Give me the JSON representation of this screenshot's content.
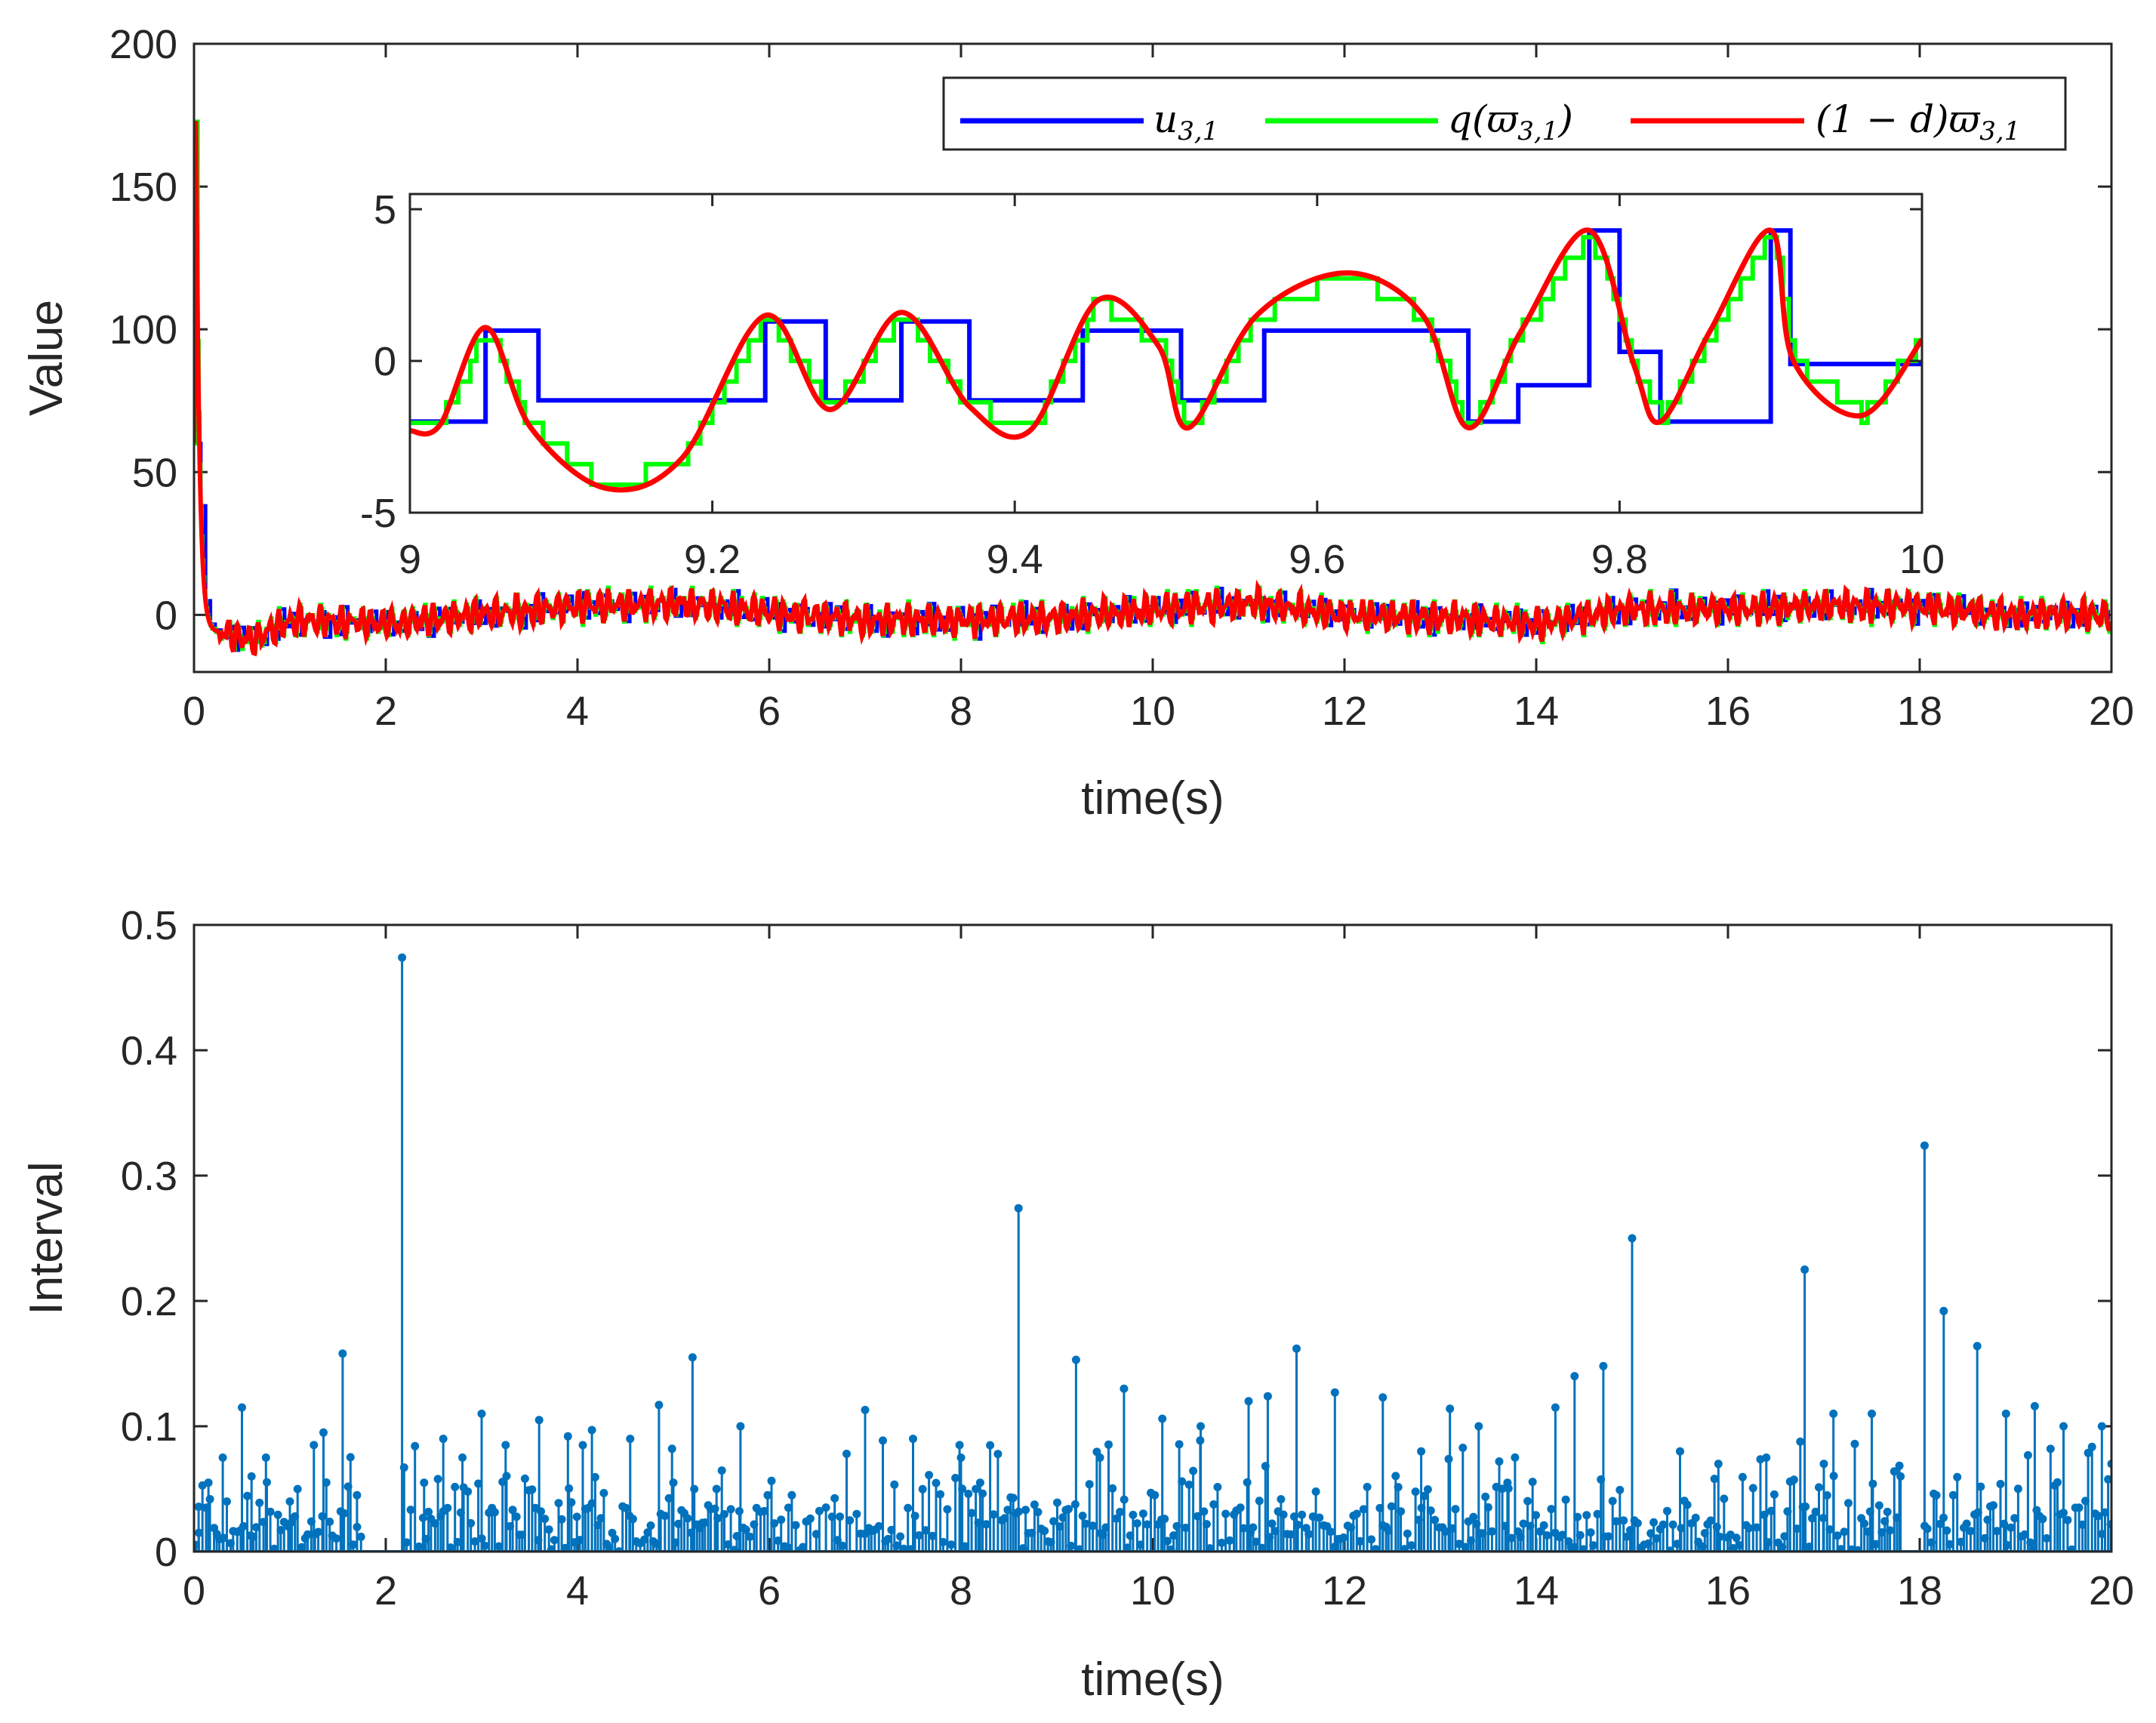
{
  "chart_data": [
    {
      "id": "top",
      "type": "line",
      "xlabel": "time(s)",
      "ylabel": "Value",
      "xlim": [
        0,
        20
      ],
      "ylim": [
        -20,
        200
      ],
      "xticks": [
        "0",
        "2",
        "4",
        "6",
        "8",
        "10",
        "12",
        "14",
        "16",
        "18",
        "20"
      ],
      "yticks": [
        "0",
        "50",
        "100",
        "150",
        "200"
      ],
      "xtick_values": [
        0,
        2,
        4,
        6,
        8,
        10,
        12,
        14,
        16,
        18,
        20
      ],
      "ytick_values": [
        0,
        50,
        100,
        150,
        200
      ],
      "legend": {
        "location": "top-right",
        "entries": [
          {
            "label": "u",
            "sub": "3,1",
            "color": "#0000ff"
          },
          {
            "label": "q(ϖ",
            "sub": "3,1",
            "suffix": ")",
            "color": "#00ff00"
          },
          {
            "label": "(1 − d)ϖ",
            "sub": "3,1",
            "color": "#ff0000"
          }
        ]
      },
      "series": [
        {
          "name": "u_{3,1}",
          "color": "#0000ff",
          "description": "event-triggered held control signal, oscillates around 0 after a spike near t=0"
        },
        {
          "name": "q(varpi_{3,1})",
          "color": "#00ff00",
          "description": "quantized signal tracking red curve"
        },
        {
          "name": "(1-d)varpi_{3,1}",
          "color": "#ff0000",
          "description": "continuous signal: spike to ~173 at t≈0.02, fast decay to 0, then oscillation within about ±8"
        }
      ],
      "initial_peak": {
        "x": 0.02,
        "y": 173
      },
      "main_envelope": [
        [
          0.25,
          -6
        ],
        [
          0.6,
          -9
        ],
        [
          1.0,
          -2
        ],
        [
          2.0,
          -3
        ],
        [
          3.0,
          0
        ],
        [
          4.0,
          3
        ],
        [
          5.0,
          4
        ],
        [
          6.0,
          1
        ],
        [
          7.0,
          -2
        ],
        [
          8.0,
          -2
        ],
        [
          9.0,
          -1
        ],
        [
          10.0,
          2
        ],
        [
          11.0,
          4
        ],
        [
          12.0,
          0
        ],
        [
          13.0,
          -1
        ],
        [
          14.0,
          -3
        ],
        [
          15.0,
          2
        ],
        [
          16.0,
          2
        ],
        [
          17.0,
          3
        ],
        [
          18.0,
          3
        ],
        [
          19.0,
          0
        ],
        [
          20.0,
          0
        ]
      ],
      "inset": {
        "xlim": [
          9,
          10
        ],
        "ylim": [
          -5,
          5.5
        ],
        "xticks": [
          "9",
          "9.2",
          "9.4",
          "9.6",
          "9.8",
          "10"
        ],
        "yticks": [
          "-5",
          "0",
          "5"
        ],
        "xtick_values": [
          9,
          9.2,
          9.4,
          9.6,
          9.8,
          10
        ],
        "ytick_values": [
          -5,
          0,
          5
        ],
        "u_steps": [
          [
            9.0,
            -2
          ],
          [
            9.05,
            1
          ],
          [
            9.085,
            -1.3
          ],
          [
            9.235,
            1.3
          ],
          [
            9.275,
            -1.3
          ],
          [
            9.325,
            1.3
          ],
          [
            9.37,
            -1.3
          ],
          [
            9.445,
            1
          ],
          [
            9.51,
            -1.3
          ],
          [
            9.565,
            1
          ],
          [
            9.7,
            -2
          ],
          [
            9.733,
            -0.8
          ],
          [
            9.78,
            4.3
          ],
          [
            9.8,
            0.3
          ],
          [
            9.827,
            -2
          ],
          [
            9.9,
            4.3
          ],
          [
            9.913,
            -0.1
          ]
        ],
        "red_points": [
          [
            9.0,
            -2.3
          ],
          [
            9.02,
            -2.1
          ],
          [
            9.05,
            1.1
          ],
          [
            9.08,
            -2.2
          ],
          [
            9.13,
            -4.2
          ],
          [
            9.18,
            -3.2
          ],
          [
            9.235,
            1.5
          ],
          [
            9.278,
            -1.6
          ],
          [
            9.325,
            1.6
          ],
          [
            9.37,
            -1.5
          ],
          [
            9.41,
            -2.3
          ],
          [
            9.455,
            2.0
          ],
          [
            9.495,
            0.5
          ],
          [
            9.515,
            -2.2
          ],
          [
            9.56,
            1.5
          ],
          [
            9.62,
            2.9
          ],
          [
            9.67,
            1.5
          ],
          [
            9.7,
            -2.2
          ],
          [
            9.735,
            1
          ],
          [
            9.78,
            4.3
          ],
          [
            9.81,
            -0.2
          ],
          [
            9.827,
            -2.0
          ],
          [
            9.86,
            1
          ],
          [
            9.9,
            4.3
          ],
          [
            9.915,
            0
          ],
          [
            9.96,
            -1.8
          ],
          [
            10.0,
            0.7
          ]
        ],
        "green_note": "staircase quantization of the red curve"
      }
    },
    {
      "id": "bottom",
      "type": "stem",
      "xlabel": "time(s)",
      "ylabel": "Interval",
      "xlim": [
        0,
        20
      ],
      "ylim": [
        0,
        0.5
      ],
      "xticks": [
        "0",
        "2",
        "4",
        "6",
        "8",
        "10",
        "12",
        "14",
        "16",
        "18",
        "20"
      ],
      "yticks": [
        "0",
        "0.1",
        "0.2",
        "0.3",
        "0.4",
        "0.5"
      ],
      "xtick_values": [
        0,
        2,
        4,
        6,
        8,
        10,
        12,
        14,
        16,
        18,
        20
      ],
      "ytick_values": [
        0,
        0.1,
        0.2,
        0.3,
        0.4,
        0.5
      ],
      "color": "#0072bd",
      "major_stems": [
        [
          0.05,
          0.015
        ],
        [
          0.15,
          0.055
        ],
        [
          0.3,
          0.075
        ],
        [
          0.5,
          0.115
        ],
        [
          0.6,
          0.06
        ],
        [
          0.75,
          0.075
        ],
        [
          1.0,
          0.04
        ],
        [
          1.25,
          0.085
        ],
        [
          1.35,
          0.095
        ],
        [
          1.55,
          0.158
        ],
        [
          1.7,
          0.045
        ],
        [
          2.17,
          0.474
        ],
        [
          2.4,
          0.055
        ],
        [
          2.6,
          0.09
        ],
        [
          2.8,
          0.075
        ],
        [
          3.0,
          0.11
        ],
        [
          3.25,
          0.085
        ],
        [
          3.6,
          0.105
        ],
        [
          3.9,
          0.092
        ],
        [
          4.15,
          0.097
        ],
        [
          4.55,
          0.09
        ],
        [
          4.85,
          0.117
        ],
        [
          5.0,
          0.055
        ],
        [
          5.2,
          0.155
        ],
        [
          5.45,
          0.05
        ],
        [
          5.7,
          0.1
        ],
        [
          6.2,
          0.035
        ],
        [
          7.0,
          0.113
        ],
        [
          7.5,
          0.09
        ],
        [
          8.0,
          0.075
        ],
        [
          8.2,
          0.055
        ],
        [
          8.6,
          0.274
        ],
        [
          9.2,
          0.153
        ],
        [
          9.45,
          0.075
        ],
        [
          9.7,
          0.13
        ],
        [
          10.1,
          0.106
        ],
        [
          10.5,
          0.1
        ],
        [
          11.0,
          0.12
        ],
        [
          11.2,
          0.124
        ],
        [
          11.5,
          0.162
        ],
        [
          11.9,
          0.127
        ],
        [
          12.4,
          0.123
        ],
        [
          12.8,
          0.08
        ],
        [
          13.1,
          0.114
        ],
        [
          13.4,
          0.1
        ],
        [
          13.7,
          0.055
        ],
        [
          14.2,
          0.115
        ],
        [
          14.4,
          0.14
        ],
        [
          14.7,
          0.148
        ],
        [
          15.0,
          0.25
        ],
        [
          15.5,
          0.08
        ],
        [
          15.9,
          0.07
        ],
        [
          16.4,
          0.075
        ],
        [
          16.8,
          0.225
        ],
        [
          17.0,
          0.07
        ],
        [
          17.1,
          0.11
        ],
        [
          17.5,
          0.11
        ],
        [
          17.8,
          0.06
        ],
        [
          18.05,
          0.324
        ],
        [
          18.25,
          0.192
        ],
        [
          18.6,
          0.164
        ],
        [
          18.9,
          0.11
        ],
        [
          19.2,
          0.116
        ],
        [
          19.5,
          0.1
        ],
        [
          19.9,
          0.1
        ],
        [
          20.0,
          0.07
        ]
      ]
    }
  ]
}
